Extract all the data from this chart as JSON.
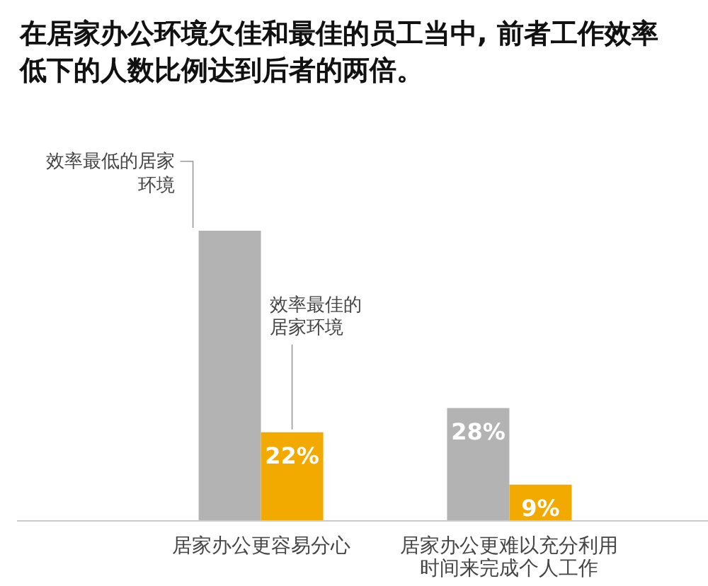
{
  "chart_data": {
    "type": "bar",
    "title": "在居家办公环境欠佳和最佳的员工当中, 前者工作效率低下的人数比例达到后者的两倍。",
    "categories": [
      "居家办公更容易分心",
      "居家办公更难以充分利用时间来完成个人工作"
    ],
    "series": [
      {
        "name": "效率最低的居家环境",
        "color": "#b3b3b3",
        "values": [
          72,
          28
        ],
        "value_labels": [
          null,
          "28%"
        ]
      },
      {
        "name": "效率最佳的居家环境",
        "color": "#f2a900",
        "values": [
          22,
          9
        ],
        "value_labels": [
          "22%",
          "9%"
        ]
      }
    ],
    "legend": false
  }
}
